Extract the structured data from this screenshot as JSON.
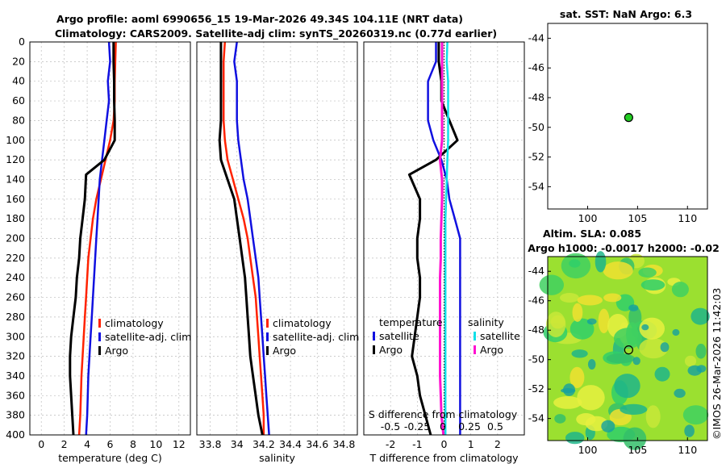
{
  "header": {
    "line1": "Argo profile: aoml 6990656_15 19-Mar-2026 49.34S 104.11E (NRT data)",
    "line2": "Climatology: CARS2009. Satellite-adj clim: synTS_20260319.nc (0.77d earlier)"
  },
  "credit": "©IMOS 26-Mar-2026 11:42:03",
  "colors": {
    "argo": "#000000",
    "climatology": "#ff2200",
    "satellite": "#1010e0",
    "salinity_argo": "#ff10d0",
    "salinity_sat": "#10e0e8"
  },
  "chart_data": [
    {
      "id": "temperature",
      "type": "line",
      "xlabel": "temperature (deg C)",
      "ylabel": "",
      "xlim": [
        -1,
        13
      ],
      "ylim": [
        400,
        0
      ],
      "xticks": [
        "0",
        "2",
        "4",
        "6",
        "8",
        "10",
        "12"
      ],
      "yticks": [
        "0",
        "20",
        "40",
        "60",
        "80",
        "100",
        "120",
        "140",
        "160",
        "180",
        "200",
        "220",
        "240",
        "260",
        "280",
        "300",
        "320",
        "340",
        "360",
        "380",
        "400"
      ],
      "legend": [
        "climatology",
        "satellite-adj. clim",
        "Argo"
      ],
      "series": [
        {
          "name": "climatology",
          "x": [
            6.5,
            6.45,
            6.4,
            6.4,
            6.3,
            6.0,
            5.6,
            5.2,
            4.8,
            4.5,
            4.3,
            4.1,
            4.0,
            3.9,
            3.8,
            3.7,
            3.6,
            3.5,
            3.45,
            3.4,
            3.3
          ],
          "y": [
            0,
            20,
            40,
            60,
            80,
            100,
            120,
            140,
            160,
            180,
            200,
            220,
            240,
            260,
            280,
            300,
            320,
            340,
            360,
            380,
            400
          ]
        },
        {
          "name": "satellite-adj. clim",
          "x": [
            5.9,
            6.0,
            5.8,
            5.9,
            5.7,
            5.5,
            5.3,
            5.1,
            5.0,
            4.9,
            4.8,
            4.7,
            4.6,
            4.5,
            4.4,
            4.3,
            4.2,
            4.1,
            4.05,
            4.0,
            3.9
          ],
          "y": [
            0,
            20,
            40,
            60,
            80,
            100,
            120,
            140,
            160,
            180,
            200,
            220,
            240,
            260,
            280,
            300,
            320,
            340,
            360,
            380,
            400
          ]
        },
        {
          "name": "Argo",
          "x": [
            6.3,
            6.3,
            6.35,
            6.35,
            6.4,
            6.4,
            5.5,
            3.9,
            3.8,
            3.6,
            3.4,
            3.3,
            3.1,
            3.0,
            2.8,
            2.6,
            2.5,
            2.5,
            2.6,
            2.7,
            2.8
          ],
          "y": [
            0,
            20,
            40,
            60,
            80,
            100,
            120,
            135,
            160,
            180,
            200,
            220,
            240,
            260,
            280,
            300,
            320,
            340,
            360,
            380,
            400
          ]
        }
      ]
    },
    {
      "id": "salinity",
      "type": "line",
      "xlabel": "salinity",
      "ylabel": "",
      "xlim": [
        33.7,
        34.9
      ],
      "ylim": [
        400,
        0
      ],
      "xticks": [
        "33.8",
        "34",
        "34.2",
        "34.4",
        "34.6",
        "34.8"
      ],
      "legend": [
        "climatology",
        "satellite-adj. clim",
        "Argo"
      ],
      "series": [
        {
          "name": "climatology",
          "x": [
            33.91,
            33.9,
            33.9,
            33.9,
            33.9,
            33.91,
            33.93,
            33.97,
            34.01,
            34.05,
            34.08,
            34.1,
            34.12,
            34.14,
            34.15,
            34.16,
            34.17,
            34.18,
            34.19,
            34.2,
            34.2
          ],
          "y": [
            0,
            20,
            40,
            60,
            80,
            100,
            120,
            140,
            160,
            180,
            200,
            220,
            240,
            260,
            280,
            300,
            320,
            340,
            360,
            380,
            400
          ]
        },
        {
          "name": "satellite-adj. clim",
          "x": [
            34.0,
            33.98,
            34.0,
            34.0,
            34.0,
            34.01,
            34.03,
            34.05,
            34.08,
            34.1,
            34.12,
            34.14,
            34.16,
            34.17,
            34.18,
            34.19,
            34.2,
            34.21,
            34.22,
            34.23,
            34.24
          ],
          "y": [
            0,
            20,
            40,
            60,
            80,
            100,
            120,
            140,
            160,
            180,
            200,
            220,
            240,
            260,
            280,
            300,
            320,
            340,
            360,
            380,
            400
          ]
        },
        {
          "name": "Argo",
          "x": [
            33.88,
            33.88,
            33.88,
            33.88,
            33.88,
            33.87,
            33.88,
            33.93,
            33.98,
            34.0,
            34.02,
            34.04,
            34.06,
            34.07,
            34.08,
            34.09,
            34.1,
            34.12,
            34.14,
            34.16,
            34.19
          ],
          "y": [
            0,
            20,
            40,
            60,
            80,
            100,
            120,
            140,
            160,
            180,
            200,
            220,
            240,
            260,
            280,
            300,
            320,
            340,
            360,
            380,
            400
          ]
        }
      ]
    },
    {
      "id": "difference",
      "type": "line",
      "xlabel": "T difference from climatology",
      "top_axis_label": "S difference from climatology",
      "xlim": [
        -3,
        3
      ],
      "ylim": [
        400,
        0
      ],
      "xticks": [
        "-2",
        "-1",
        "0",
        "1",
        "2"
      ],
      "top_ticks": [
        "-0.5",
        "-0.25",
        "0",
        "0.25",
        "0.5"
      ],
      "legend_temperature": {
        "title": "temperature",
        "entries": [
          "satellite",
          "Argo"
        ]
      },
      "legend_salinity": {
        "title": "salinity",
        "entries": [
          "satellite",
          "Argo"
        ]
      },
      "series": [
        {
          "name": "T satellite",
          "x": [
            -0.3,
            -0.3,
            -0.6,
            -0.6,
            -0.6,
            -0.4,
            -0.1,
            0.1,
            0.2,
            0.4,
            0.6,
            0.6,
            0.6,
            0.6,
            0.6,
            0.6,
            0.6,
            0.6,
            0.6,
            0.6,
            0.6
          ],
          "y": [
            0,
            20,
            40,
            60,
            80,
            100,
            120,
            140,
            160,
            180,
            200,
            220,
            240,
            260,
            280,
            300,
            320,
            340,
            360,
            380,
            400
          ]
        },
        {
          "name": "T Argo",
          "x": [
            -0.2,
            -0.2,
            -0.1,
            -0.1,
            0.2,
            0.5,
            -0.3,
            -1.3,
            -0.9,
            -0.9,
            -1.0,
            -1.0,
            -0.9,
            -0.9,
            -1.0,
            -1.1,
            -1.2,
            -1.0,
            -0.9,
            -0.7,
            -0.5
          ],
          "y": [
            0,
            20,
            40,
            60,
            80,
            100,
            120,
            135,
            160,
            180,
            200,
            220,
            240,
            260,
            280,
            300,
            320,
            340,
            360,
            380,
            400
          ]
        },
        {
          "name": "S satellite",
          "x": [
            0.05,
            0.04,
            0.06,
            0.06,
            0.06,
            0.06,
            0.05,
            0.04,
            0.03,
            0.02,
            0.02,
            0.02,
            0.02,
            0.02,
            0.02,
            0.02,
            0.02,
            0.02,
            0.02,
            0.02,
            0.02
          ],
          "y": [
            0,
            20,
            40,
            60,
            80,
            100,
            120,
            140,
            160,
            180,
            200,
            220,
            240,
            260,
            280,
            300,
            320,
            340,
            360,
            380,
            400
          ]
        },
        {
          "name": "S Argo",
          "x": [
            -0.03,
            -0.03,
            -0.03,
            -0.03,
            -0.03,
            -0.03,
            -0.06,
            -0.03,
            -0.03,
            -0.04,
            -0.05,
            -0.05,
            -0.06,
            -0.06,
            -0.06,
            -0.06,
            -0.06,
            -0.06,
            -0.05,
            -0.04,
            -0.01
          ],
          "y": [
            0,
            20,
            40,
            60,
            80,
            100,
            120,
            140,
            160,
            180,
            200,
            220,
            240,
            260,
            280,
            300,
            320,
            340,
            360,
            380,
            400
          ]
        }
      ]
    },
    {
      "id": "sst_map",
      "type": "scatter",
      "title": "sat. SST: NaN Argo: 6.3",
      "xlim": [
        96,
        112
      ],
      "ylim": [
        -55.5,
        -43
      ],
      "xticks": [
        "100",
        "105",
        "110"
      ],
      "yticks": [
        "-44",
        "-46",
        "-48",
        "-50",
        "-52",
        "-54"
      ],
      "points": [
        {
          "x": 104.11,
          "y": -49.34
        }
      ]
    },
    {
      "id": "sla_map",
      "type": "heatmap",
      "title1": "Altim. SLA: 0.085",
      "title2": "Argo h1000: -0.0017 h2000: -0.02",
      "xlim": [
        96,
        112
      ],
      "ylim": [
        -55.5,
        -43
      ],
      "xticks": [
        "100",
        "105",
        "110"
      ],
      "yticks": [
        "-44",
        "-46",
        "-48",
        "-50",
        "-52",
        "-54"
      ],
      "points": [
        {
          "x": 104.11,
          "y": -49.34
        }
      ]
    }
  ]
}
